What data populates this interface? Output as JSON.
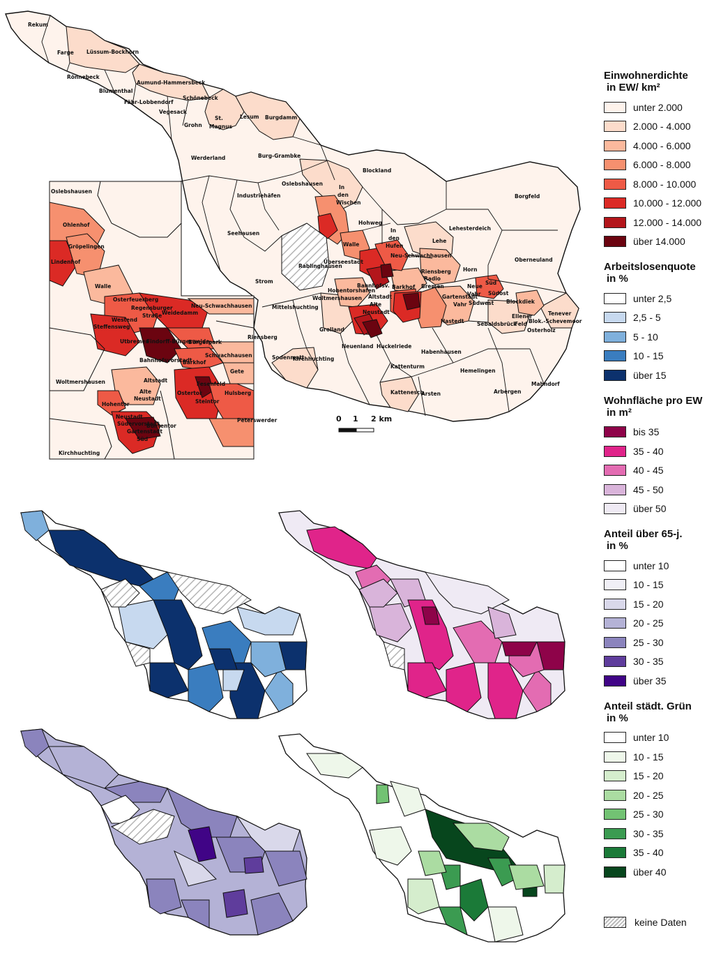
{
  "map_labels": {
    "main": [
      "Rekum",
      "Farge",
      "Lüssum-Bockhorn",
      "Rönnebeck",
      "Blumenthal",
      "Aumund-Hammersbeck",
      "Schönebeck",
      "Fähr-Lobbendorf",
      "Vegesack",
      "St.",
      "Magnus",
      "Grohn",
      "Lesum",
      "Burgdamm",
      "Burg-Grambke",
      "Werderland",
      "Blockland",
      "Industriehäfen",
      "Oslebshausen",
      "In",
      "den",
      "Wischen",
      "Borgfeld",
      "Seehausen",
      "Hohweg",
      "Lehesterdeich",
      "In",
      "den",
      "Hufen",
      "Lehe",
      "Walle",
      "Neu-Schwachhausen",
      "Oberneuland",
      "Rablinghausen",
      "Überseestadt",
      "Horn",
      "Strom",
      "Riensberg",
      "Radio",
      "Bremen",
      "Bahnhofsv.",
      "Barkhof",
      "Hohentorshafen",
      "Woltmershausen",
      "Altstadt",
      "Alte",
      "Neustadt",
      "Neue",
      "Vahr",
      "Südost",
      "Gartenstadt",
      "Vahr",
      "Südwest",
      "Blockdiek",
      "Mittelshuchting",
      "Hastedt",
      "Ellener",
      "Feld",
      "Grolland",
      "Sebaldsbrück",
      "Osterholz",
      "Tenever",
      "Blok.-Schevemoor",
      "Neuenland",
      "Huckelriede",
      "Habenhausen",
      "Sodenmatt",
      "Kirchhuchting",
      "Kattenturm",
      "Hemelingen",
      "Mahndorf",
      "Arbergen",
      "Kattenesch",
      "Arsten"
    ],
    "inset": [
      "Oslebshausen",
      "Ohlenhof",
      "Gröpelingen",
      "Lindenhof",
      "Walle",
      "Osterfeuerberg",
      "Regensburger",
      "Straße",
      "Neu-Schwachhausen",
      "Weidedamm",
      "Westend",
      "Steffensweg",
      "Utbremen",
      "Findorff-Bürgerweide",
      "Bürgerpark",
      "Bahnhofsvorstadt",
      "Barkhof",
      "Schwachhausen",
      "Riensberg",
      "Gete",
      "Woltmershausen",
      "Altstadt",
      "Alte",
      "Neustadt",
      "Fesenfeld",
      "Ostertor",
      "Steintor",
      "Hulsberg",
      "Hohentor",
      "Neustadt",
      "Südervorstadt",
      "Buntentor",
      "Gartenstadt",
      "Süd",
      "Kirchhuchting",
      "Peterswerder"
    ]
  },
  "scale_bar": {
    "labels": [
      "0",
      "1",
      "2 km"
    ]
  },
  "legend": [
    {
      "id": "density",
      "title": [
        "Einwohnerdichte",
        "in EW/ km²"
      ],
      "classes": [
        {
          "label": "unter 2.000",
          "color": "#fef3ec"
        },
        {
          "label": "2.000 - 4.000",
          "color": "#fcdccb"
        },
        {
          "label": "4.000 - 6.000",
          "color": "#fbb99d"
        },
        {
          "label": "6.000 - 8.000",
          "color": "#f6906f"
        },
        {
          "label": "8.000 - 10.000",
          "color": "#ee5a46"
        },
        {
          "label": "10.000 - 12.000",
          "color": "#db2a25"
        },
        {
          "label": "12.000 - 14.000",
          "color": "#b3161b"
        },
        {
          "label": "über 14.000",
          "color": "#6b0410"
        }
      ]
    },
    {
      "id": "unemployment",
      "title": [
        "Arbeitslosenquote",
        "in %"
      ],
      "classes": [
        {
          "label": "unter 2,5",
          "color": "#ffffff"
        },
        {
          "label": "2,5 - 5",
          "color": "#c7d9ef"
        },
        {
          "label": "5 - 10",
          "color": "#7fb0dc"
        },
        {
          "label": "10 - 15",
          "color": "#3a7dbf"
        },
        {
          "label": "über 15",
          "color": "#0c316d"
        }
      ]
    },
    {
      "id": "living_space",
      "title": [
        "Wohnfläche pro EW",
        "in m²"
      ],
      "classes": [
        {
          "label": "bis 35",
          "color": "#8e0349"
        },
        {
          "label": "35 - 40",
          "color": "#e0248a"
        },
        {
          "label": "40 - 45",
          "color": "#e36cb2"
        },
        {
          "label": "45 - 50",
          "color": "#d9b4da"
        },
        {
          "label": "über 50",
          "color": "#efeaf4"
        }
      ]
    },
    {
      "id": "over65",
      "title": [
        "Anteil über 65-j.",
        "in %"
      ],
      "classes": [
        {
          "label": "unter 10",
          "color": "#ffffff"
        },
        {
          "label": "10 - 15",
          "color": "#f0eff6"
        },
        {
          "label": "15 - 20",
          "color": "#d9d8ea"
        },
        {
          "label": "20 - 25",
          "color": "#b4b2d6"
        },
        {
          "label": "25 - 30",
          "color": "#8b84bd"
        },
        {
          "label": "30 - 35",
          "color": "#5f3d9c"
        },
        {
          "label": "über 35",
          "color": "#400486"
        }
      ]
    },
    {
      "id": "green",
      "title": [
        "Anteil städt. Grün",
        "in %"
      ],
      "classes": [
        {
          "label": "unter 10",
          "color": "#ffffff"
        },
        {
          "label": "10 - 15",
          "color": "#eef7ea"
        },
        {
          "label": "15 - 20",
          "color": "#d5edcd"
        },
        {
          "label": "20 - 25",
          "color": "#abdca2"
        },
        {
          "label": "25 - 30",
          "color": "#72c273"
        },
        {
          "label": "30 - 35",
          "color": "#3b9b51"
        },
        {
          "label": "35 - 40",
          "color": "#1b7a38"
        },
        {
          "label": "über 40",
          "color": "#07461d"
        }
      ]
    }
  ],
  "no_data_label": "keine Daten"
}
